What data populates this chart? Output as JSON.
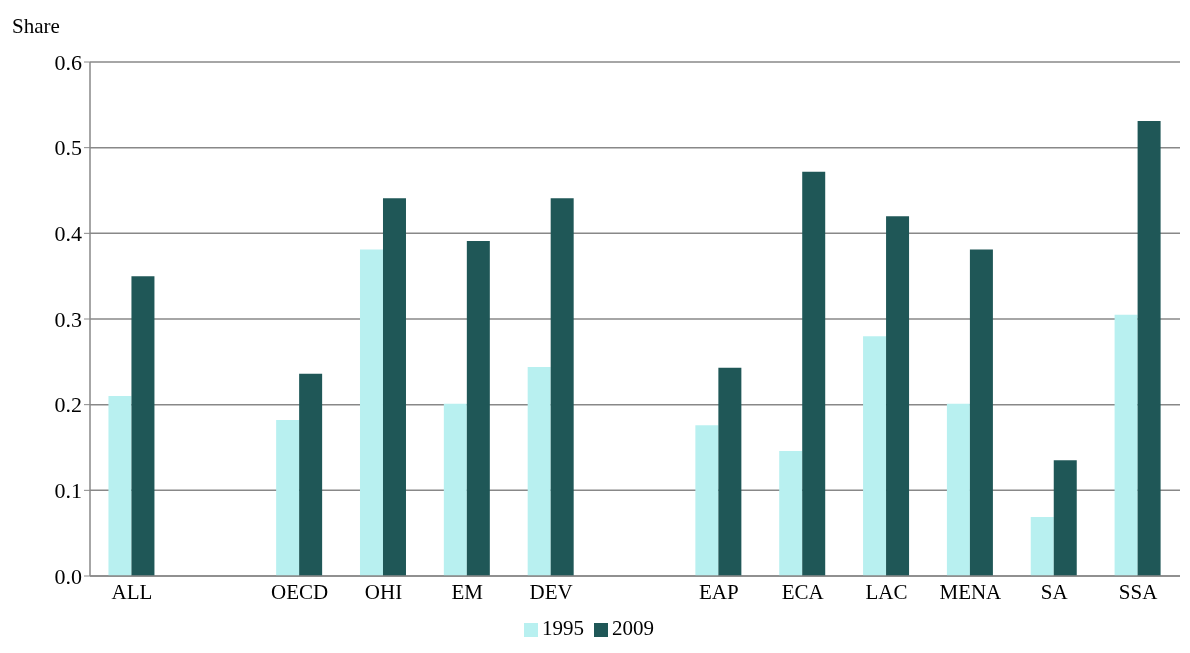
{
  "chart_data": {
    "type": "bar",
    "ylabel": "Share",
    "categories": [
      "ALL",
      null,
      "OECD",
      "OHI",
      "EM",
      "DEV",
      null,
      "EAP",
      "ECA",
      "LAC",
      "MENA",
      "SA",
      "SSA"
    ],
    "series": [
      {
        "name": "1995",
        "color": "#b8f0f0",
        "values": [
          0.21,
          null,
          0.182,
          0.381,
          0.201,
          0.244,
          null,
          0.176,
          0.146,
          0.28,
          0.201,
          0.069,
          0.305
        ]
      },
      {
        "name": "2009",
        "color": "#1f5757",
        "values": [
          0.35,
          null,
          0.236,
          0.441,
          0.391,
          0.441,
          null,
          0.243,
          0.472,
          0.42,
          0.381,
          0.135,
          0.531
        ]
      }
    ],
    "ylim": [
      0,
      0.6
    ],
    "yticks": [
      {
        "value": 0,
        "label": "0.0"
      },
      0.1,
      0.2,
      0.3,
      0.4,
      0.5,
      0.6
    ],
    "grid": "y",
    "legend": "bottom"
  }
}
